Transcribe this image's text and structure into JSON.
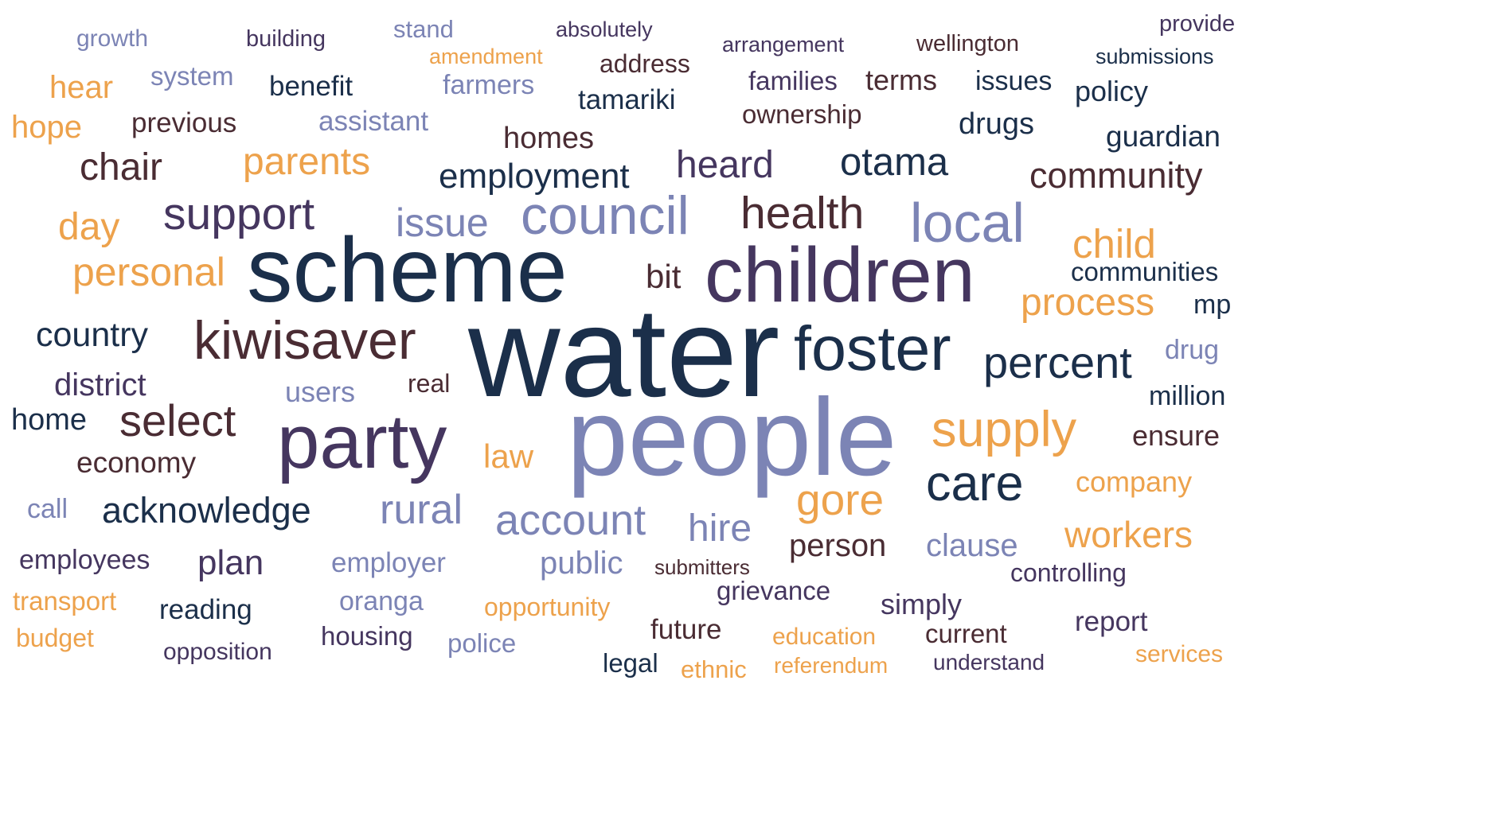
{
  "palette": {
    "navy": "#1b2f4a",
    "slate": "#7c84b5",
    "orange": "#eda24c",
    "plum": "#45365f",
    "brown": "#4a2c33"
  },
  "words": {
    "water": "water",
    "people": "people",
    "scheme": "scheme",
    "children": "children",
    "party": "party",
    "foster": "foster",
    "kiwisaver": "kiwisaver",
    "council": "council",
    "local": "local",
    "supply": "supply",
    "care": "care",
    "health": "health",
    "percent": "percent",
    "support": "support",
    "select": "select",
    "personal": "personal",
    "gore": "gore",
    "account": "account",
    "rural": "rural",
    "process": "process",
    "otama": "otama",
    "heard": "heard",
    "community": "community",
    "child": "child",
    "employment": "employment",
    "acknowledge": "acknowledge",
    "workers": "workers",
    "parents": "parents",
    "issue": "issue",
    "chair": "chair",
    "country": "country",
    "hire": "hire",
    "day": "day",
    "plan": "plan",
    "law": "law",
    "person": "person",
    "clause": "clause",
    "district": "district",
    "bit": "bit",
    "public": "public",
    "ensure": "ensure",
    "home": "home",
    "economy": "economy",
    "company": "company",
    "homes": "homes",
    "drugs": "drugs",
    "guardian": "guardian",
    "policy": "policy",
    "hope": "hope",
    "hear": "hear",
    "tamariki": "tamariki",
    "terms": "terms",
    "issues": "issues",
    "users": "users",
    "million": "million",
    "communities": "communities",
    "mp": "mp",
    "drug": "drug",
    "employees": "employees",
    "employer": "employer",
    "controlling": "controlling",
    "reading": "reading",
    "oranga": "oranga",
    "grievance": "grievance",
    "simply": "simply",
    "report": "report",
    "future": "future",
    "current": "current",
    "housing": "housing",
    "legal": "legal",
    "police": "police",
    "ethnic": "ethnic",
    "education": "education",
    "services": "services",
    "transport": "transport",
    "budget": "budget",
    "call": "call",
    "opportunity": "opportunity",
    "opposition": "opposition",
    "referendum": "referendum",
    "understand": "understand",
    "submitters": "submitters",
    "benefit": "benefit",
    "previous": "previous",
    "assistant": "assistant",
    "farmers": "farmers",
    "address": "address",
    "ownership": "ownership",
    "families": "families",
    "system": "system",
    "growth": "growth",
    "building": "building",
    "stand": "stand",
    "amendment": "amendment",
    "absolutely": "absolutely",
    "arrangement": "arrangement",
    "wellington": "wellington",
    "provide": "provide",
    "submissions": "submissions",
    "real": "real"
  }
}
